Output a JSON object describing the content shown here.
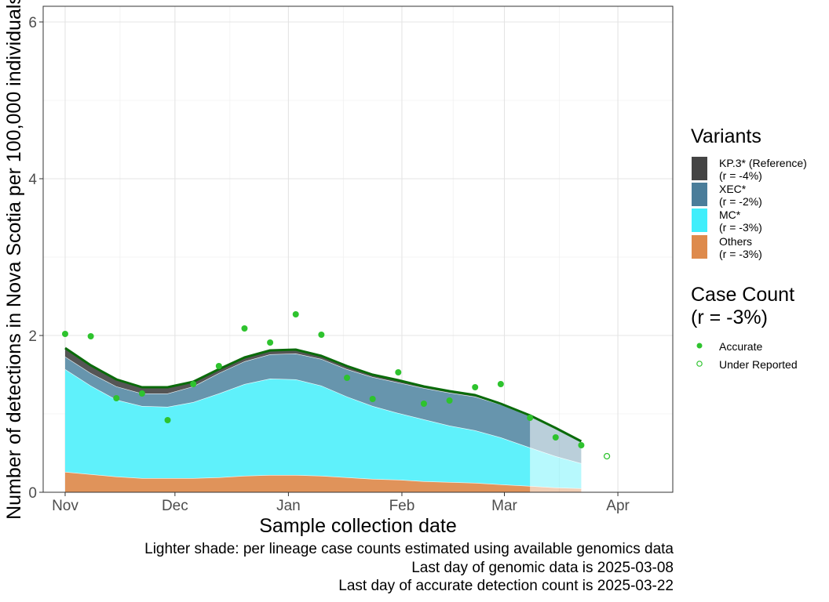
{
  "chart_data": {
    "type": "area",
    "xlabel": "Sample collection date",
    "ylabel": "Number of detections in Nova Scotia per 100,000 individuals",
    "x_tick_labels": [
      "Nov",
      "Dec",
      "Jan",
      "Feb",
      "Mar",
      "Apr"
    ],
    "x_tick_dates": [
      "2024-11-01",
      "2024-12-01",
      "2025-01-01",
      "2025-02-01",
      "2025-03-01",
      "2025-04-01"
    ],
    "y_tick_labels": [
      "0",
      "2",
      "4",
      "6"
    ],
    "ylim": [
      0,
      6.2
    ],
    "xlim": [
      "2024-10-26",
      "2025-04-16"
    ],
    "grid": true,
    "x": [
      "2024-11-01",
      "2024-11-08",
      "2024-11-15",
      "2024-11-22",
      "2024-11-29",
      "2024-12-06",
      "2024-12-13",
      "2024-12-20",
      "2024-12-27",
      "2025-01-03",
      "2025-01-10",
      "2025-01-17",
      "2025-01-24",
      "2025-01-31",
      "2025-02-07",
      "2025-02-14",
      "2025-02-21",
      "2025-02-28",
      "2025-03-08",
      "2025-03-15",
      "2025-03-22"
    ],
    "stacked_series": [
      {
        "name": "Others",
        "values": [
          0.26,
          0.23,
          0.2,
          0.18,
          0.18,
          0.18,
          0.19,
          0.21,
          0.22,
          0.22,
          0.21,
          0.19,
          0.17,
          0.16,
          0.14,
          0.13,
          0.12,
          0.1,
          0.08,
          0.06,
          0.05
        ],
        "color": "#e0935a"
      },
      {
        "name": "MC*",
        "values": [
          1.31,
          1.13,
          0.98,
          0.92,
          0.91,
          0.97,
          1.07,
          1.17,
          1.23,
          1.22,
          1.15,
          1.03,
          0.93,
          0.85,
          0.79,
          0.72,
          0.67,
          0.6,
          0.49,
          0.4,
          0.32
        ],
        "color": "#5ff1fb"
      },
      {
        "name": "XEC*",
        "values": [
          0.16,
          0.16,
          0.17,
          0.16,
          0.17,
          0.2,
          0.26,
          0.29,
          0.31,
          0.33,
          0.34,
          0.35,
          0.37,
          0.39,
          0.4,
          0.42,
          0.43,
          0.42,
          0.4,
          0.35,
          0.28
        ],
        "color": "#6795ad"
      },
      {
        "name": "KP.3* (Reference)",
        "values": [
          0.11,
          0.1,
          0.09,
          0.08,
          0.08,
          0.06,
          0.05,
          0.05,
          0.05,
          0.05,
          0.04,
          0.04,
          0.03,
          0.03,
          0.02,
          0.02,
          0.02,
          0.01,
          0.01,
          0.01,
          0.0
        ],
        "color": "#555555"
      }
    ],
    "total_line": {
      "values": [
        1.84,
        1.62,
        1.44,
        1.34,
        1.34,
        1.41,
        1.57,
        1.72,
        1.81,
        1.82,
        1.74,
        1.61,
        1.5,
        1.43,
        1.35,
        1.29,
        1.24,
        1.13,
        0.98,
        0.82,
        0.65
      ],
      "color": "#0a6b0a"
    },
    "accurate_points": {
      "x": [
        "2024-11-01",
        "2024-11-08",
        "2024-11-15",
        "2024-11-22",
        "2024-11-29",
        "2024-12-06",
        "2024-12-13",
        "2024-12-20",
        "2024-12-27",
        "2025-01-03",
        "2025-01-10",
        "2025-01-17",
        "2025-01-24",
        "2025-01-31",
        "2025-02-07",
        "2025-02-14",
        "2025-02-21",
        "2025-02-28",
        "2025-03-08",
        "2025-03-15",
        "2025-03-22"
      ],
      "y": [
        2.02,
        1.99,
        1.2,
        1.26,
        0.92,
        1.38,
        1.61,
        2.09,
        1.91,
        2.27,
        2.01,
        1.46,
        1.19,
        1.53,
        1.13,
        1.17,
        1.34,
        1.38,
        0.95,
        0.7,
        0.6
      ],
      "color": "#2ec32e"
    },
    "under_reported_points": {
      "x": [
        "2025-03-29"
      ],
      "y": [
        0.46
      ],
      "color": "#2ec32e"
    },
    "genomic_data_end": "2025-03-08",
    "legend_placement": "right"
  },
  "legend": {
    "variants_title": "Variants",
    "variants": [
      {
        "label": "KP.3* (Reference)\n(r = -4%)",
        "color": "#444444"
      },
      {
        "label": "XEC*\n(r = -2%)",
        "color": "#4a7d9a"
      },
      {
        "label": "MC*\n(r = -3%)",
        "color": "#40eefb"
      },
      {
        "label": "Others\n(r = -3%)",
        "color": "#de8a4c"
      }
    ],
    "case_count_title": "Case Count\n(r = -3%)",
    "case_count_items": [
      {
        "label": "Accurate",
        "marker": "filled-circle"
      },
      {
        "label": "Under Reported",
        "marker": "open-circle"
      }
    ]
  },
  "captions": {
    "line1": "Lighter shade: per lineage case counts estimated using available genomics data",
    "line2": "Last day of genomic data is 2025-03-08",
    "line3": "Last day of accurate detection count is 2025-03-22"
  }
}
